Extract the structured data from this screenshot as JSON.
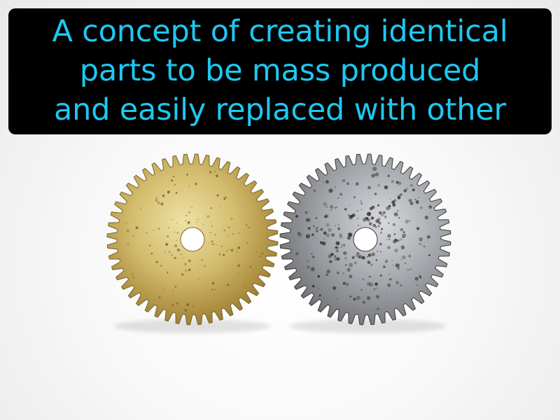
{
  "caption": {
    "lines": [
      "A concept of creating identical",
      "parts to be mass produced",
      "and easily replaced with other"
    ],
    "text_color": "#1ec8f0",
    "background_color": "#000000"
  },
  "illustration": {
    "gears": [
      {
        "name": "brass-gear",
        "finish": "brass",
        "teeth": 48,
        "colors": [
          "#e4d48f",
          "#b89a45",
          "#7a6428"
        ]
      },
      {
        "name": "steel-gear",
        "finish": "rusted-steel",
        "teeth": 48,
        "colors": [
          "#c9ccd0",
          "#8c8f94",
          "#3e3a36"
        ]
      }
    ]
  }
}
